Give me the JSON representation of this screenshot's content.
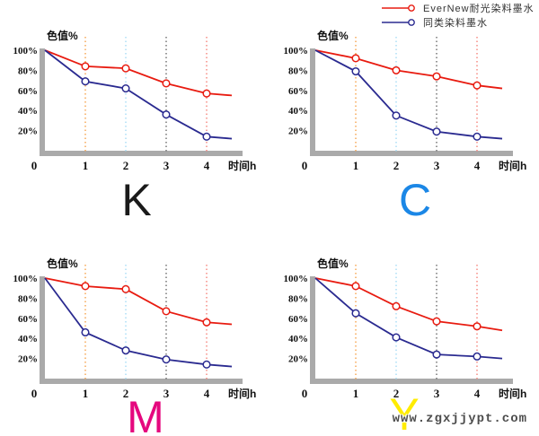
{
  "legend": {
    "items": [
      {
        "label": "EverNew耐光染料墨水",
        "color": "#e81b10"
      },
      {
        "label": "同类染料墨水",
        "color": "#2a2a90"
      }
    ]
  },
  "watermark": "www.zgxjjypt.com",
  "colors": {
    "axis_gray": "#aaaaaa",
    "gridline_colors": [
      "#f5a24b",
      "#a5dcf5",
      "#6b6b6b",
      "#f5837b"
    ]
  },
  "chart_data": [
    {
      "type": "line",
      "id": "K",
      "letter": "K",
      "letter_color": "#1a1a1a",
      "title": "K",
      "ylabel": "色值%",
      "xlabel": "时间h",
      "yticks": [
        "100%",
        "80%",
        "60%",
        "40%",
        "20%"
      ],
      "xticks": [
        "0",
        "1",
        "2",
        "3",
        "4"
      ],
      "x": [
        0,
        1,
        2,
        3,
        4
      ],
      "ylim": [
        0,
        100
      ],
      "grid": "vertical-dotted",
      "legend_position": "top-right-shared",
      "series": [
        {
          "name": "EverNew耐光染料墨水",
          "color": "#e81b10",
          "values": [
            100,
            84,
            82,
            67,
            57
          ],
          "end_value": 55
        },
        {
          "name": "同类染料墨水",
          "color": "#2a2a90",
          "values": [
            100,
            69,
            62,
            36,
            14
          ],
          "end_value": 12
        }
      ]
    },
    {
      "type": "line",
      "id": "C",
      "letter": "C",
      "letter_color": "#1b87e6",
      "title": "C",
      "ylabel": "色值%",
      "xlabel": "时间h",
      "yticks": [
        "100%",
        "80%",
        "60%",
        "40%",
        "20%"
      ],
      "xticks": [
        "0",
        "1",
        "2",
        "3",
        "4"
      ],
      "x": [
        0,
        1,
        2,
        3,
        4
      ],
      "ylim": [
        0,
        100
      ],
      "grid": "vertical-dotted",
      "legend_position": "top-right-shared",
      "series": [
        {
          "name": "EverNew耐光染料墨水",
          "color": "#e81b10",
          "values": [
            100,
            92,
            80,
            74,
            65
          ],
          "end_value": 62
        },
        {
          "name": "同类染料墨水",
          "color": "#2a2a90",
          "values": [
            100,
            79,
            35,
            19,
            14
          ],
          "end_value": 12
        }
      ]
    },
    {
      "type": "line",
      "id": "M",
      "letter": "M",
      "letter_color": "#e5087e",
      "title": "M",
      "ylabel": "色值%",
      "xlabel": "时间h",
      "yticks": [
        "100%",
        "80%",
        "60%",
        "40%",
        "20%"
      ],
      "xticks": [
        "0",
        "1",
        "2",
        "3",
        "4"
      ],
      "x": [
        0,
        1,
        2,
        3,
        4
      ],
      "ylim": [
        0,
        100
      ],
      "grid": "vertical-dotted",
      "legend_position": "top-right-shared",
      "series": [
        {
          "name": "EverNew耐光染料墨水",
          "color": "#e81b10",
          "values": [
            100,
            92,
            89,
            67,
            56
          ],
          "end_value": 54
        },
        {
          "name": "同类染料墨水",
          "color": "#2a2a90",
          "values": [
            100,
            46,
            28,
            19,
            14
          ],
          "end_value": 12
        }
      ]
    },
    {
      "type": "line",
      "id": "Y",
      "letter": "Y",
      "letter_color": "#ffec00",
      "title": "Y",
      "ylabel": "色值%",
      "xlabel": "时间h",
      "yticks": [
        "100%",
        "80%",
        "60%",
        "40%",
        "20%"
      ],
      "xticks": [
        "0",
        "1",
        "2",
        "3",
        "4"
      ],
      "x": [
        0,
        1,
        2,
        3,
        4
      ],
      "ylim": [
        0,
        100
      ],
      "grid": "vertical-dotted",
      "legend_position": "top-right-shared",
      "series": [
        {
          "name": "EverNew耐光染料墨水",
          "color": "#e81b10",
          "values": [
            100,
            92,
            72,
            57,
            52
          ],
          "end_value": 48
        },
        {
          "name": "同类染料墨水",
          "color": "#2a2a90",
          "values": [
            100,
            65,
            41,
            24,
            22
          ],
          "end_value": 20
        }
      ]
    }
  ]
}
